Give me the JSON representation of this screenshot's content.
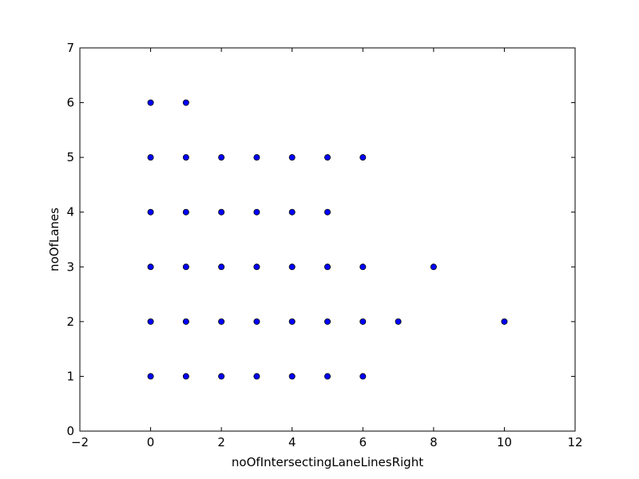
{
  "chart_data": {
    "type": "scatter",
    "title": "",
    "xlabel": "noOfIntersectingLaneLinesRight",
    "ylabel": "noOfLanes",
    "xlim": [
      -2,
      12
    ],
    "ylim": [
      0,
      7
    ],
    "x_ticks": [
      -2,
      0,
      2,
      4,
      6,
      8,
      10,
      12
    ],
    "x_tick_labels": [
      "−2",
      "0",
      "2",
      "4",
      "6",
      "8",
      "10",
      "12"
    ],
    "y_ticks": [
      0,
      1,
      2,
      3,
      4,
      5,
      6,
      7
    ],
    "y_tick_labels": [
      "0",
      "1",
      "2",
      "3",
      "4",
      "5",
      "6",
      "7"
    ],
    "grid": false,
    "marker_color": "#0000ff",
    "marker_edge_color": "#000000",
    "series": [
      {
        "points": [
          [
            0,
            6
          ],
          [
            1,
            6
          ],
          [
            0,
            5
          ],
          [
            1,
            5
          ],
          [
            2,
            5
          ],
          [
            3,
            5
          ],
          [
            4,
            5
          ],
          [
            5,
            5
          ],
          [
            6,
            5
          ],
          [
            0,
            4
          ],
          [
            1,
            4
          ],
          [
            2,
            4
          ],
          [
            3,
            4
          ],
          [
            4,
            4
          ],
          [
            5,
            4
          ],
          [
            0,
            3
          ],
          [
            1,
            3
          ],
          [
            2,
            3
          ],
          [
            3,
            3
          ],
          [
            4,
            3
          ],
          [
            5,
            3
          ],
          [
            6,
            3
          ],
          [
            8,
            3
          ],
          [
            0,
            2
          ],
          [
            1,
            2
          ],
          [
            2,
            2
          ],
          [
            3,
            2
          ],
          [
            4,
            2
          ],
          [
            5,
            2
          ],
          [
            6,
            2
          ],
          [
            7,
            2
          ],
          [
            10,
            2
          ],
          [
            0,
            1
          ],
          [
            1,
            1
          ],
          [
            2,
            1
          ],
          [
            3,
            1
          ],
          [
            4,
            1
          ],
          [
            5,
            1
          ],
          [
            6,
            1
          ]
        ]
      }
    ]
  }
}
